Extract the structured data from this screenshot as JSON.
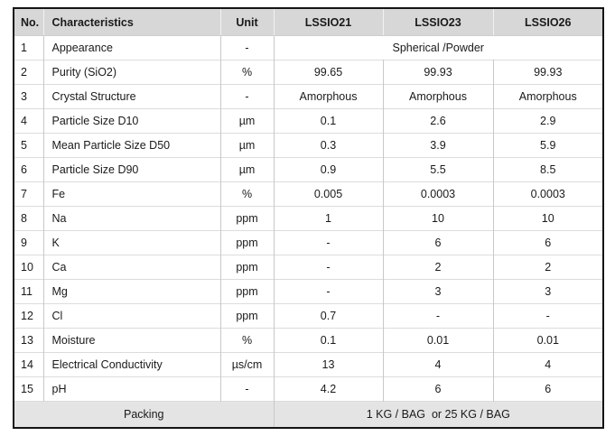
{
  "colors": {
    "header_bg": "#d7d7d7",
    "footer_bg": "#e4e4e4",
    "outer_border": "#141414",
    "grid_v": "#c8c8c8",
    "grid_h": "#dcdcdc",
    "text_color": "#1a1a1a"
  },
  "table": {
    "headers": [
      "No.",
      "Characteristics",
      "Unit",
      "LSSIO21",
      "LSSIO23",
      "LSSIO26"
    ],
    "rows": [
      {
        "no": "1",
        "characteristic": "Appearance",
        "unit": "-",
        "merged": "Spherical /Powder"
      },
      {
        "no": "2",
        "characteristic": "Purity (SiO2)",
        "unit": "%",
        "values": [
          "99.65",
          "99.93",
          "99.93"
        ]
      },
      {
        "no": "3",
        "characteristic": "Crystal Structure",
        "unit": "-",
        "values": [
          "Amorphous",
          "Amorphous",
          "Amorphous"
        ]
      },
      {
        "no": "4",
        "characteristic": "Particle Size D10",
        "unit": "µm",
        "values": [
          "0.1",
          "2.6",
          "2.9"
        ]
      },
      {
        "no": "5",
        "characteristic": "Mean Particle Size D50",
        "unit": "µm",
        "values": [
          "0.3",
          "3.9",
          "5.9"
        ]
      },
      {
        "no": "6",
        "characteristic": "Particle Size D90",
        "unit": "µm",
        "values": [
          "0.9",
          "5.5",
          "8.5"
        ]
      },
      {
        "no": "7",
        "characteristic": "Fe",
        "unit": "%",
        "values": [
          "0.005",
          "0.0003",
          "0.0003"
        ]
      },
      {
        "no": "8",
        "characteristic": "Na",
        "unit": "ppm",
        "values": [
          "1",
          "10",
          "10"
        ]
      },
      {
        "no": "9",
        "characteristic": "K",
        "unit": "ppm",
        "values": [
          "-",
          "6",
          "6"
        ]
      },
      {
        "no": "10",
        "characteristic": "Ca",
        "unit": "ppm",
        "values": [
          "-",
          "2",
          "2"
        ]
      },
      {
        "no": "11",
        "characteristic": "Mg",
        "unit": "ppm",
        "values": [
          "-",
          "3",
          "3"
        ]
      },
      {
        "no": "12",
        "characteristic": "Cl",
        "unit": "ppm",
        "values": [
          "0.7",
          "-",
          "-"
        ]
      },
      {
        "no": "13",
        "characteristic": "Moisture",
        "unit": "%",
        "values": [
          "0.1",
          "0.01",
          "0.01"
        ]
      },
      {
        "no": "14",
        "characteristic": "Electrical Conductivity",
        "unit": "µs/cm",
        "values": [
          "13",
          "4",
          "4"
        ]
      },
      {
        "no": "15",
        "characteristic": "pH",
        "unit": "-",
        "values": [
          "4.2",
          "6",
          "6"
        ]
      }
    ],
    "footer": {
      "label": "Packing",
      "value": "1 KG / BAG  or 25 KG / BAG"
    }
  }
}
